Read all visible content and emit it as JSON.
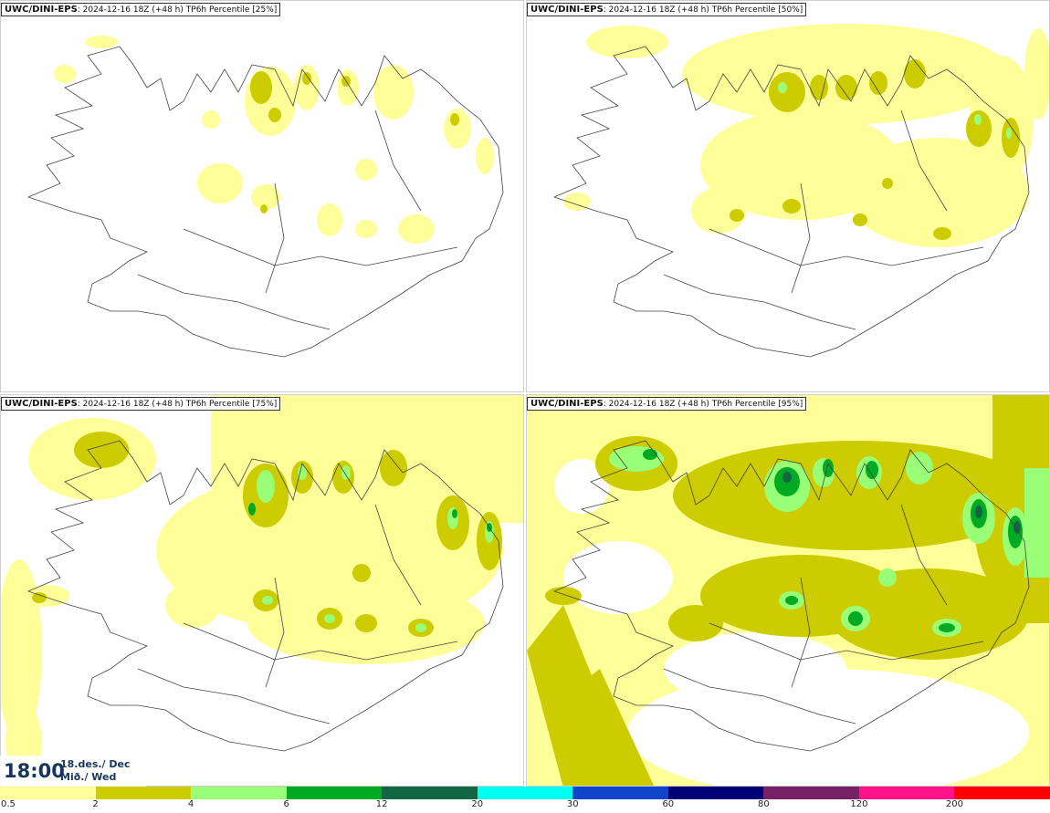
{
  "panels": [
    {
      "model": "UWC/DINI-EPS",
      "run": "2024-12-16 18Z (+48 h)",
      "product": "TP6h Percentile [25%]"
    },
    {
      "model": "UWC/DINI-EPS",
      "run": "2024-12-16 18Z (+48 h)",
      "product": "TP6h Percentile [50%]"
    },
    {
      "model": "UWC/DINI-EPS",
      "run": "2024-12-16 18Z (+48 h)",
      "product": "TP6h Percentile [75%]"
    },
    {
      "model": "UWC/DINI-EPS",
      "run": "2024-12-16 18Z (+48 h)",
      "product": "TP6h Percentile [95%]"
    }
  ],
  "valid_time": {
    "time": "18:00",
    "date_line1": "18.des./ Dec",
    "date_line2": "Mið./ Wed"
  },
  "colorbar": {
    "ticks": [
      "0.5",
      "2",
      "4",
      "6",
      "12",
      "20",
      "30",
      "60",
      "80",
      "120",
      "200"
    ],
    "colors": [
      "#ffff99",
      "#cccc00",
      "#99ff77",
      "#00aa22",
      "#116644",
      "#00ffee",
      "#1144cc",
      "#000077",
      "#772266",
      "#ff1188",
      "#ff0000"
    ]
  }
}
